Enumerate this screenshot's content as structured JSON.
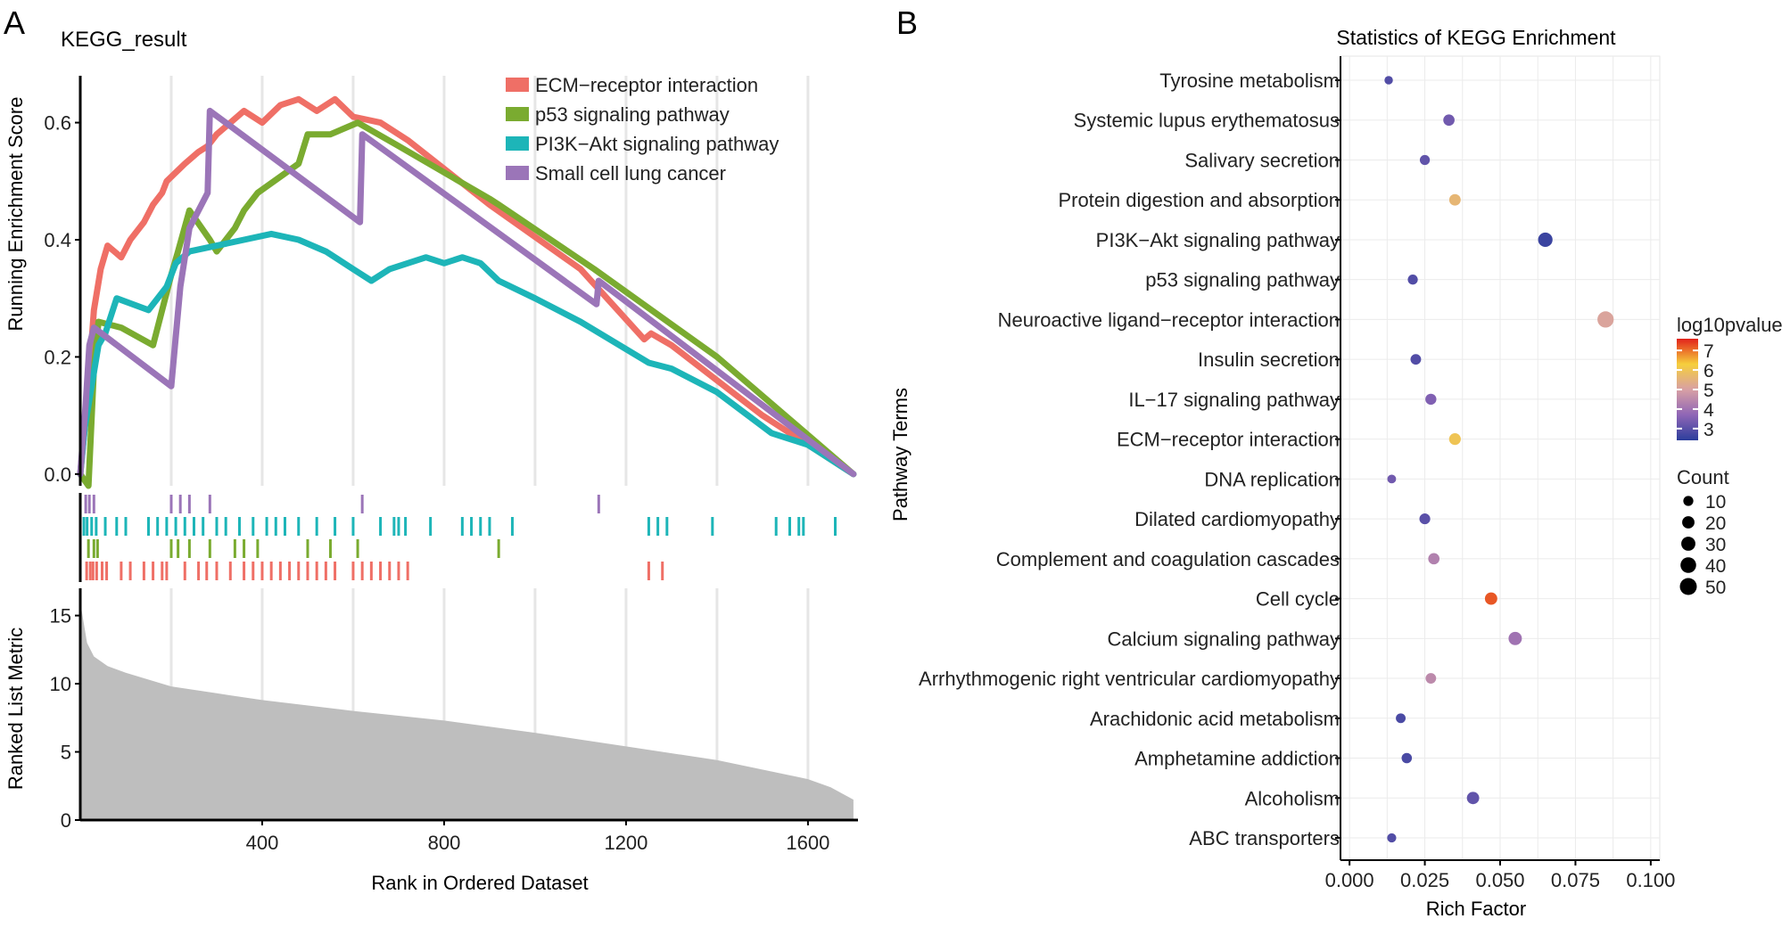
{
  "panel_a_label": "A",
  "panel_b_label": "B",
  "chart_data": [
    {
      "type": "line",
      "title": "KEGG_result",
      "xlabel": "Rank in Ordered Dataset",
      "ylabel": "Running Enrichment Score",
      "xlim": [
        0,
        1710
      ],
      "ylim": [
        -0.02,
        0.68
      ],
      "xticks": [
        400,
        800,
        1200,
        1600
      ],
      "yticks": [
        0.0,
        0.2,
        0.4,
        0.6
      ],
      "ytick_labels": [
        "0.0",
        "0.2",
        "0.4",
        "0.6"
      ],
      "legend_position": "top-right",
      "series": [
        {
          "name": "ECM−receptor interaction",
          "color": "#ef6f66",
          "hits": [
            14,
            22,
            28,
            36,
            48,
            58,
            90,
            110,
            140,
            160,
            180,
            190,
            230,
            260,
            278,
            300,
            330,
            360,
            380,
            400,
            420,
            440,
            460,
            480,
            500,
            520,
            540,
            560,
            600,
            620,
            640,
            660,
            680,
            700,
            720,
            1250,
            1280
          ],
          "x": [
            0,
            15,
            30,
            45,
            60,
            90,
            110,
            140,
            160,
            180,
            190,
            230,
            260,
            280,
            300,
            330,
            360,
            400,
            440,
            480,
            520,
            560,
            600,
            660,
            720,
            900,
            1100,
            1240,
            1255,
            1300,
            1500,
            1700
          ],
          "y": [
            0,
            0.12,
            0.28,
            0.35,
            0.39,
            0.37,
            0.4,
            0.43,
            0.46,
            0.48,
            0.5,
            0.53,
            0.55,
            0.56,
            0.58,
            0.6,
            0.62,
            0.6,
            0.63,
            0.64,
            0.62,
            0.64,
            0.61,
            0.6,
            0.57,
            0.46,
            0.35,
            0.23,
            0.24,
            0.22,
            0.1,
            0.0
          ]
        },
        {
          "name": "p53 signaling pathway",
          "color": "#7aab30",
          "hits": [
            18,
            30,
            38,
            200,
            215,
            240,
            285,
            340,
            360,
            390,
            500,
            550,
            610,
            920
          ],
          "x": [
            0,
            18,
            30,
            40,
            90,
            160,
            200,
            215,
            240,
            285,
            300,
            340,
            360,
            390,
            480,
            500,
            550,
            610,
            700,
            900,
            920,
            1130,
            1400,
            1700
          ],
          "y": [
            0,
            -0.02,
            0.18,
            0.26,
            0.25,
            0.22,
            0.34,
            0.38,
            0.45,
            0.4,
            0.38,
            0.42,
            0.45,
            0.48,
            0.53,
            0.58,
            0.58,
            0.6,
            0.56,
            0.47,
            0.46,
            0.35,
            0.2,
            0.0
          ]
        },
        {
          "name": "PI3K−Akt signaling pathway",
          "color": "#1db5b8",
          "hits": [
            8,
            15,
            25,
            35,
            55,
            80,
            100,
            150,
            170,
            190,
            210,
            230,
            250,
            270,
            300,
            320,
            350,
            380,
            410,
            430,
            450,
            480,
            520,
            560,
            600,
            660,
            690,
            700,
            715,
            770,
            840,
            860,
            880,
            900,
            950,
            1250,
            1270,
            1290,
            1390,
            1530,
            1560,
            1580,
            1590,
            1660
          ],
          "x": [
            0,
            10,
            25,
            40,
            55,
            80,
            150,
            190,
            210,
            240,
            300,
            360,
            420,
            480,
            540,
            600,
            640,
            680,
            720,
            760,
            800,
            840,
            880,
            920,
            1000,
            1100,
            1250,
            1300,
            1400,
            1520,
            1600,
            1700
          ],
          "y": [
            0,
            0.08,
            0.15,
            0.22,
            0.24,
            0.3,
            0.28,
            0.32,
            0.36,
            0.38,
            0.39,
            0.4,
            0.41,
            0.4,
            0.38,
            0.35,
            0.33,
            0.35,
            0.36,
            0.37,
            0.36,
            0.37,
            0.36,
            0.33,
            0.3,
            0.26,
            0.19,
            0.18,
            0.14,
            0.07,
            0.05,
            0.0
          ]
        },
        {
          "name": "Small cell lung cancer",
          "color": "#9b75b8",
          "hits": [
            12,
            20,
            30,
            200,
            220,
            240,
            285,
            620,
            1140
          ],
          "x": [
            0,
            12,
            20,
            30,
            200,
            220,
            240,
            280,
            285,
            615,
            620,
            1135,
            1140,
            1700
          ],
          "y": [
            0,
            0.12,
            0.22,
            0.25,
            0.15,
            0.32,
            0.42,
            0.48,
            0.62,
            0.43,
            0.58,
            0.29,
            0.33,
            0.0
          ]
        }
      ],
      "lower_panel": {
        "type": "area",
        "ylabel": "Ranked List Metric",
        "ylim": [
          0,
          17
        ],
        "yticks": [
          0,
          5,
          10,
          15
        ],
        "ytick_labels": [
          "0",
          "5",
          "10",
          "15"
        ],
        "x": [
          0,
          5,
          15,
          30,
          60,
          100,
          200,
          300,
          400,
          600,
          800,
          1000,
          1200,
          1400,
          1600,
          1650,
          1700
        ],
        "y": [
          16.0,
          15.0,
          13.0,
          12.0,
          11.3,
          10.8,
          9.8,
          9.3,
          8.8,
          8.0,
          7.3,
          6.4,
          5.4,
          4.4,
          3.0,
          2.4,
          1.5
        ]
      }
    },
    {
      "type": "scatter",
      "title": "Statistics of KEGG Enrichment",
      "xlabel": "Rich Factor",
      "ylabel": "Pathway Terms",
      "xlim": [
        -0.003,
        0.103
      ],
      "xticks": [
        0.0,
        0.025,
        0.05,
        0.075,
        0.1
      ],
      "xtick_labels": [
        "0.000",
        "0.025",
        "0.050",
        "0.075",
        "0.100"
      ],
      "color_legend": {
        "title": "log10pvalue",
        "min": 2.4,
        "max": 7.6,
        "ticks": [
          3,
          4,
          5,
          6,
          7
        ],
        "tick_labels": [
          "3",
          "4",
          "5",
          "6",
          "7"
        ]
      },
      "size_legend": {
        "title": "Count",
        "values": [
          10,
          20,
          30,
          40,
          50
        ],
        "labels": [
          "10",
          "20",
          "30",
          "40",
          "50"
        ]
      },
      "categories": [
        "Tyrosine metabolism",
        "Systemic lupus erythematosus",
        "Salivary secretion",
        "Protein digestion and absorption",
        "PI3K−Akt signaling pathway",
        "p53 signaling pathway",
        "Neuroactive ligand−receptor interaction",
        "Insulin secretion",
        "IL−17 signaling pathway",
        "ECM−receptor interaction",
        "DNA replication",
        "Dilated cardiomyopathy",
        "Complement and coagulation cascades",
        "Cell cycle",
        "Calcium signaling pathway",
        "Arrhythmogenic right ventricular cardiomyopathy",
        "Arachidonic acid metabolism",
        "Amphetamine addiction",
        "Alcoholism",
        "ABC transporters"
      ],
      "rich_factor": [
        0.013,
        0.033,
        0.025,
        0.035,
        0.065,
        0.021,
        0.085,
        0.022,
        0.027,
        0.035,
        0.014,
        0.025,
        0.028,
        0.047,
        0.055,
        0.027,
        0.017,
        0.019,
        0.041,
        0.014
      ],
      "count": [
        5,
        15,
        10,
        16,
        32,
        10,
        45,
        12,
        14,
        17,
        6,
        13,
        15,
        20,
        25,
        12,
        9,
        11,
        20,
        7
      ],
      "log10pvalue": [
        2.9,
        3.3,
        3.1,
        5.6,
        2.6,
        2.9,
        5.1,
        2.9,
        3.5,
        6.0,
        3.3,
        3.0,
        4.3,
        7.2,
        4.0,
        4.5,
        2.8,
        2.8,
        3.1,
        2.9
      ]
    }
  ]
}
